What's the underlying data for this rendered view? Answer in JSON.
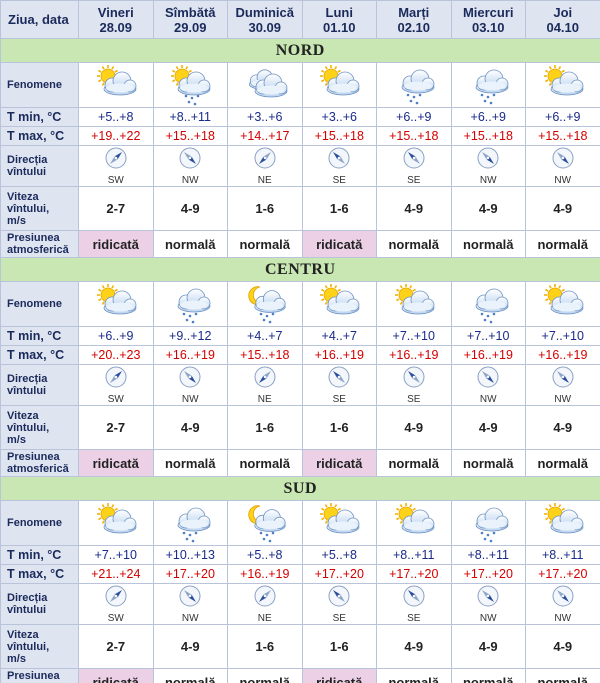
{
  "header": {
    "first_label": "Ziua, data",
    "days": [
      {
        "name": "Vineri",
        "date": "28.09"
      },
      {
        "name": "Sîmbătă",
        "date": "29.09"
      },
      {
        "name": "Duminică",
        "date": "30.09"
      },
      {
        "name": "Luni",
        "date": "01.10"
      },
      {
        "name": "Marți",
        "date": "02.10"
      },
      {
        "name": "Miercuri",
        "date": "03.10"
      },
      {
        "name": "Joi",
        "date": "04.10"
      }
    ]
  },
  "row_labels": {
    "phenomena": "Fenomene",
    "tmin": "T min, °C",
    "tmax": "T max, °C",
    "wind_dir_1": "Direcția",
    "wind_dir_2": "vîntului",
    "wind_speed_1": "Viteza",
    "wind_speed_2": "vîntului,",
    "wind_speed_3": "m/s",
    "pressure_1": "Presiunea",
    "pressure_2": "atmosferică"
  },
  "regions": [
    {
      "name": "NORD",
      "icons": [
        "partly-cloudy-sun-icon",
        "partly-cloudy-rain-icon",
        "cloudy-icon",
        "partly-cloudy-sun-icon",
        "cloudy-rain-icon",
        "cloudy-rain-icon",
        "partly-cloudy-sun-icon"
      ],
      "tmin": [
        "+5..+8",
        "+8..+11",
        "+3..+6",
        "+3..+6",
        "+6..+9",
        "+6..+9",
        "+6..+9"
      ],
      "tmax": [
        "+19..+22",
        "+15..+18",
        "+14..+17",
        "+15..+18",
        "+15..+18",
        "+15..+18",
        "+15..+18"
      ],
      "wind_dir": [
        "SW",
        "NW",
        "NE",
        "SE",
        "SE",
        "NW",
        "NW"
      ],
      "wind_speed": [
        "2-7",
        "4-9",
        "1-6",
        "1-6",
        "4-9",
        "4-9",
        "4-9"
      ],
      "pressure": [
        "ridicată",
        "normală",
        "normală",
        "ridicată",
        "normală",
        "normală",
        "normală"
      ]
    },
    {
      "name": "CENTRU",
      "icons": [
        "partly-cloudy-sun-icon",
        "cloudy-rain-icon",
        "night-cloudy-rain-icon",
        "partly-cloudy-sun-icon",
        "partly-cloudy-sun-icon",
        "cloudy-rain-icon",
        "partly-cloudy-sun-icon"
      ],
      "tmin": [
        "+6..+9",
        "+9..+12",
        "+4..+7",
        "+4..+7",
        "+7..+10",
        "+7..+10",
        "+7..+10"
      ],
      "tmax": [
        "+20..+23",
        "+16..+19",
        "+15..+18",
        "+16..+19",
        "+16..+19",
        "+16..+19",
        "+16..+19"
      ],
      "wind_dir": [
        "SW",
        "NW",
        "NE",
        "SE",
        "SE",
        "NW",
        "NW"
      ],
      "wind_speed": [
        "2-7",
        "4-9",
        "1-6",
        "1-6",
        "4-9",
        "4-9",
        "4-9"
      ],
      "pressure": [
        "ridicată",
        "normală",
        "normală",
        "ridicată",
        "normală",
        "normală",
        "normală"
      ]
    },
    {
      "name": "SUD",
      "icons": [
        "partly-cloudy-sun-icon",
        "cloudy-rain-icon",
        "night-cloudy-rain-icon",
        "partly-cloudy-sun-icon",
        "partly-cloudy-sun-icon",
        "cloudy-rain-icon",
        "partly-cloudy-sun-icon"
      ],
      "tmin": [
        "+7..+10",
        "+10..+13",
        "+5..+8",
        "+5..+8",
        "+8..+11",
        "+8..+11",
        "+8..+11"
      ],
      "tmax": [
        "+21..+24",
        "+17..+20",
        "+16..+19",
        "+17..+20",
        "+17..+20",
        "+17..+20",
        "+17..+20"
      ],
      "wind_dir": [
        "SW",
        "NW",
        "NE",
        "SE",
        "SE",
        "NW",
        "NW"
      ],
      "wind_speed": [
        "2-7",
        "4-9",
        "1-6",
        "1-6",
        "4-9",
        "4-9",
        "4-9"
      ],
      "pressure": [
        "ridicată",
        "normală",
        "normală",
        "ridicată",
        "normală",
        "normală",
        "normală"
      ]
    }
  ],
  "colors": {
    "header_bg": "#dfe4f1",
    "region_bg": "#c9e7b3",
    "tmin_text": "#1a2a8a",
    "tmax_text": "#d40000",
    "high_pressure_bg": "#ecd1e6"
  }
}
